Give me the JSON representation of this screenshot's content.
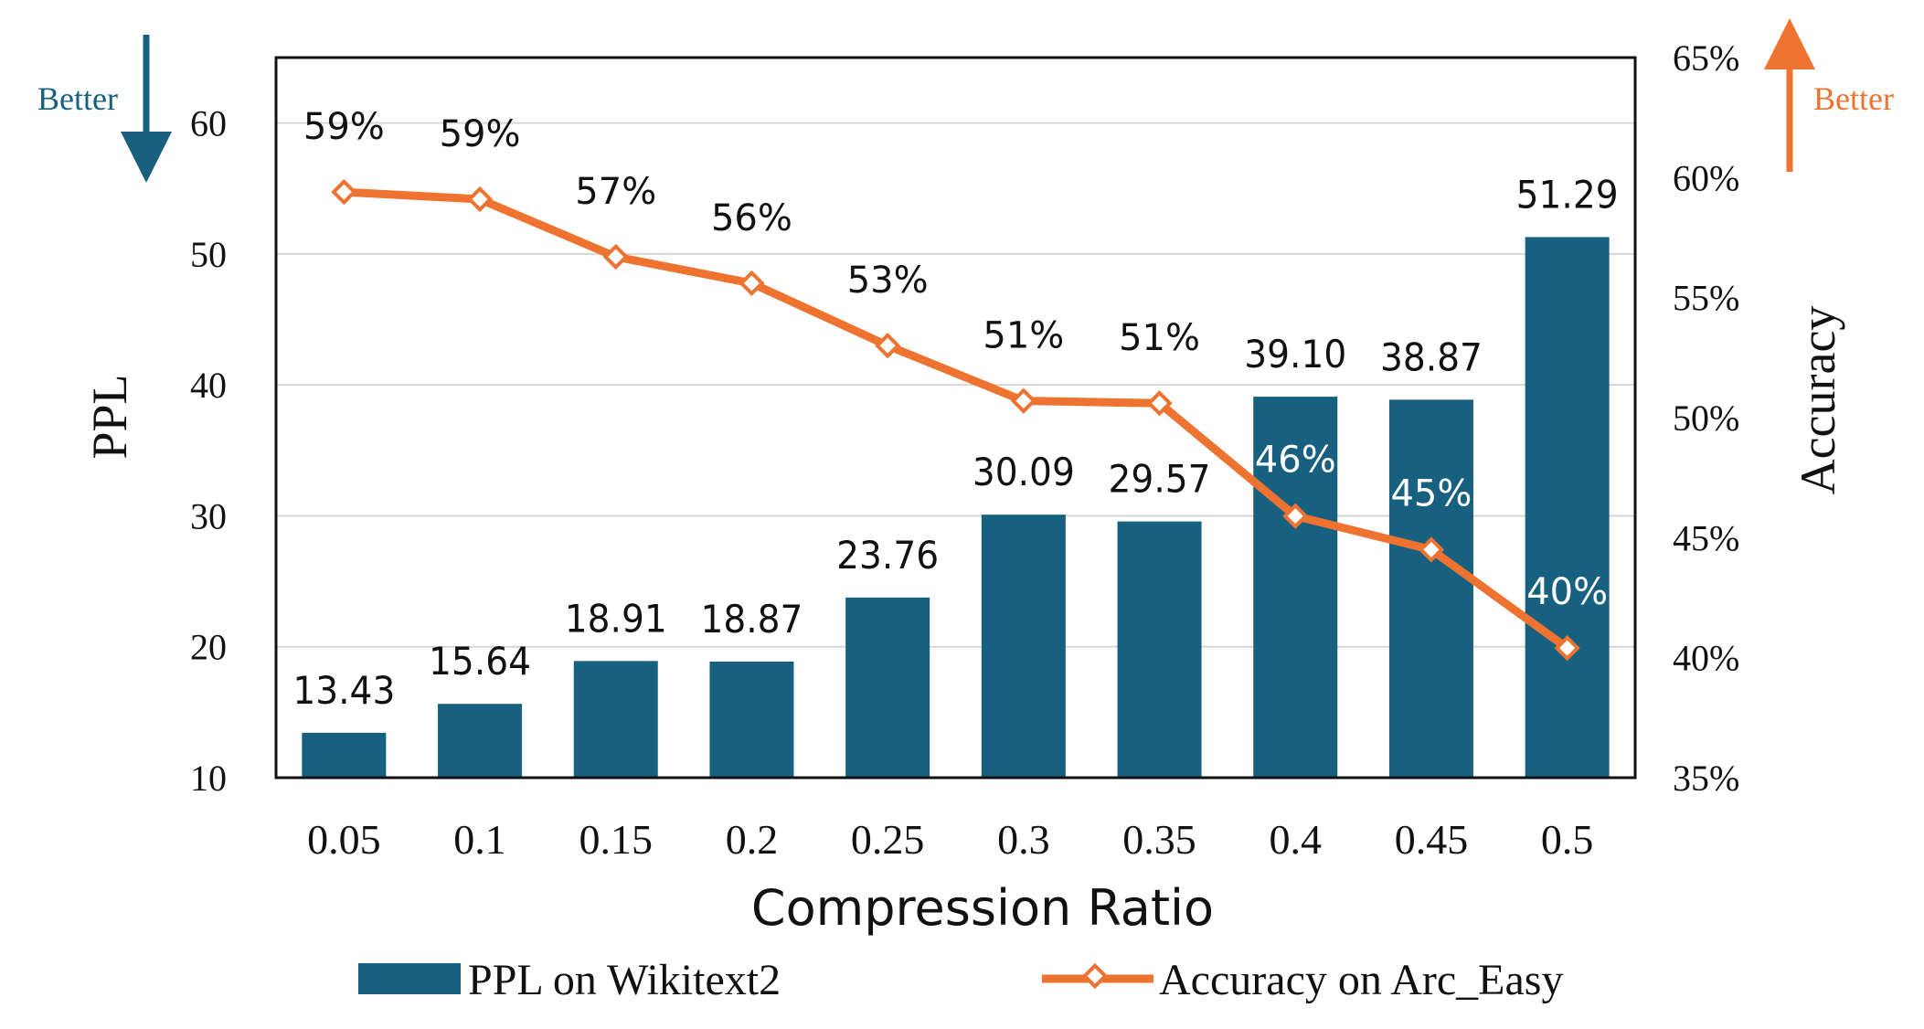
{
  "colors": {
    "bar": "#17607f",
    "line": "#ee7331",
    "marker_fill": "#ffffff",
    "text": "#111111",
    "bar_label_inside": "#ffffff",
    "better_left": "#17607f",
    "better_right": "#ee7331"
  },
  "annotations": {
    "better_left": "Better",
    "better_right": "Better"
  },
  "chart_data": {
    "type": "bar+line",
    "xlabel": "Compression Ratio",
    "ylabel_left": "PPL",
    "ylabel_right": "Accuracy",
    "categories": [
      "0.05",
      "0.1",
      "0.15",
      "0.2",
      "0.25",
      "0.3",
      "0.35",
      "0.4",
      "0.45",
      "0.5"
    ],
    "left_axis": {
      "min": 10,
      "max": 65,
      "ticks": [
        10,
        20,
        30,
        40,
        50,
        60
      ]
    },
    "right_axis": {
      "min": 35,
      "max": 65,
      "ticks": [
        35,
        40,
        45,
        50,
        55,
        60,
        65
      ],
      "tick_labels": [
        "35%",
        "40%",
        "45%",
        "50%",
        "55%",
        "60%",
        "65%"
      ]
    },
    "grid": true,
    "legend_position": "bottom",
    "series": [
      {
        "name": "PPL on Wikitext2",
        "type": "bar",
        "axis": "left",
        "values": [
          13.43,
          15.64,
          18.91,
          18.87,
          23.76,
          30.09,
          29.57,
          39.1,
          38.87,
          51.29
        ],
        "labels": [
          "13.43",
          "15.64",
          "18.91",
          "18.87",
          "23.76",
          "30.09",
          "29.57",
          "39.10",
          "38.87",
          "51.29"
        ]
      },
      {
        "name": "Accuracy on Arc_Easy",
        "type": "line",
        "axis": "right",
        "values": [
          59.4,
          59.1,
          56.7,
          55.6,
          53.0,
          50.7,
          50.6,
          45.9,
          44.5,
          40.4
        ],
        "labels": [
          "59%",
          "59%",
          "57%",
          "56%",
          "53%",
          "51%",
          "51%",
          "46%",
          "45%",
          "40%"
        ]
      }
    ]
  }
}
